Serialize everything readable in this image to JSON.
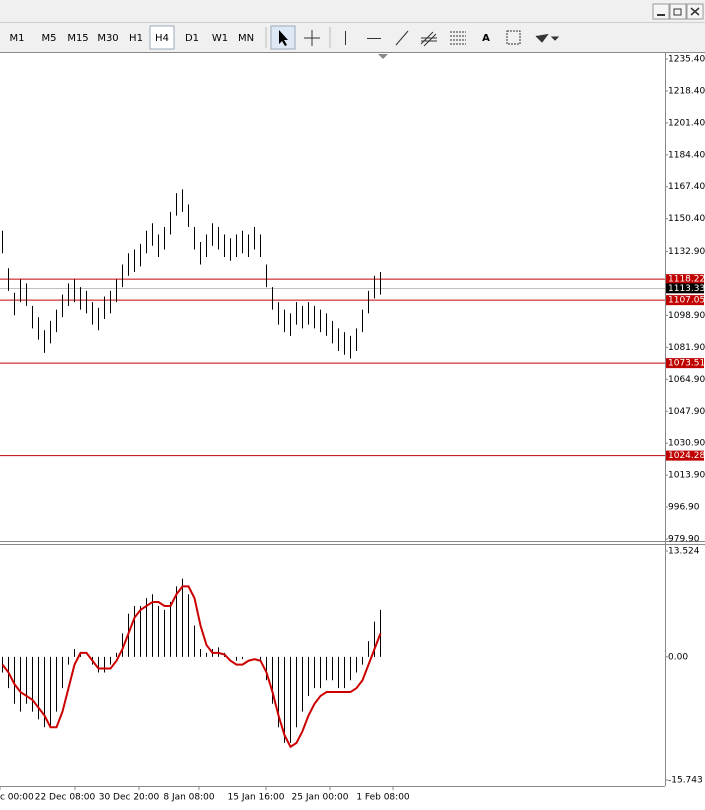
{
  "toolbar": {
    "timeframes": [
      "M1",
      "M5",
      "M15",
      "M30",
      "H1",
      "H4",
      "D1",
      "W1",
      "MN"
    ],
    "text_tool": "A"
  },
  "chart_data": [
    {
      "type": "ohlc",
      "highs": [
        1144,
        1124,
        1111,
        1118,
        1116,
        1104,
        1098,
        1091,
        1096,
        1102,
        1110,
        1116,
        1118,
        1114,
        1112,
        1106,
        1103,
        1109,
        1112,
        1118,
        1126,
        1132,
        1134,
        1137,
        1144,
        1148,
        1142,
        1146,
        1154,
        1164,
        1166,
        1158,
        1146,
        1138,
        1142,
        1148,
        1146,
        1142,
        1140,
        1142,
        1144,
        1142,
        1146,
        1142,
        1126,
        1114,
        1106,
        1102,
        1100,
        1106,
        1104,
        1106,
        1104,
        1102,
        1100,
        1096,
        1092,
        1090,
        1088,
        1092,
        1102,
        1112,
        1120,
        1122
      ],
      "lows": [
        1132,
        1112,
        1099,
        1106,
        1104,
        1092,
        1086,
        1079,
        1084,
        1090,
        1098,
        1104,
        1106,
        1102,
        1100,
        1094,
        1091,
        1097,
        1100,
        1106,
        1114,
        1120,
        1122,
        1125,
        1132,
        1136,
        1130,
        1134,
        1142,
        1152,
        1154,
        1146,
        1134,
        1126,
        1130,
        1136,
        1134,
        1130,
        1128,
        1130,
        1132,
        1130,
        1134,
        1130,
        1114,
        1102,
        1094,
        1090,
        1088,
        1094,
        1092,
        1094,
        1092,
        1090,
        1088,
        1084,
        1080,
        1078,
        1076,
        1080,
        1090,
        1100,
        1108,
        1110
      ],
      "ylim": [
        979.9,
        1235.4
      ],
      "yticks": [
        {
          "value": 1235.4,
          "label": "1235.40"
        },
        {
          "value": 1218.4,
          "label": "1218.40"
        },
        {
          "value": 1201.4,
          "label": "1201.40"
        },
        {
          "value": 1184.4,
          "label": "1184.40"
        },
        {
          "value": 1167.4,
          "label": "1167.40"
        },
        {
          "value": 1150.4,
          "label": "1150.40"
        },
        {
          "value": 1132.9,
          "label": "1132.90"
        },
        {
          "value": 1098.9,
          "label": "1098.90"
        },
        {
          "value": 1081.9,
          "label": "1081.90"
        },
        {
          "value": 1064.9,
          "label": "1064.90"
        },
        {
          "value": 1047.9,
          "label": "1047.90"
        },
        {
          "value": 1030.9,
          "label": "1030.90"
        },
        {
          "value": 1013.9,
          "label": "1013.90"
        },
        {
          "value": 996.9,
          "label": "996.90"
        },
        {
          "value": 979.9,
          "label": "979.90"
        }
      ],
      "levels": [
        1118.22,
        1107.05,
        1073.51,
        1024.28
      ],
      "level_color": "#c00000",
      "bid": 1113.33,
      "bar_color": "#000000"
    },
    {
      "type": "macd",
      "histogram": [
        -2,
        -4,
        -6,
        -7,
        -6,
        -7,
        -8,
        -9,
        -9,
        -7,
        -4,
        -1,
        1,
        0.5,
        0,
        -1,
        -2,
        -2,
        -1,
        0.5,
        3,
        5.5,
        6.5,
        6.5,
        7.5,
        8,
        6.5,
        6,
        7,
        9,
        10,
        8,
        4,
        1,
        0.5,
        1,
        1.2,
        0.5,
        0,
        -0.5,
        -0.3,
        0,
        0,
        -0.5,
        -3,
        -6,
        -9,
        -11,
        -11,
        -9,
        -7,
        -5,
        -4,
        -4,
        -3,
        -3,
        -4,
        -4,
        -3,
        -2,
        -1,
        2,
        4.5,
        6
      ],
      "signal": [
        -1,
        -2,
        -3.5,
        -4.5,
        -5,
        -5.5,
        -6.5,
        -7.5,
        -9,
        -9,
        -7,
        -4,
        -1,
        0.5,
        0.5,
        -0.5,
        -1.5,
        -1.5,
        -1.5,
        -0.5,
        1,
        3,
        5,
        6,
        6.5,
        7,
        7,
        6.5,
        6.5,
        8,
        9,
        9,
        7.5,
        4,
        1.5,
        0.5,
        0.5,
        0.3,
        -0.5,
        -1,
        -1,
        -0.5,
        -0.3,
        -0.5,
        -2,
        -4.5,
        -7.5,
        -10,
        -11.5,
        -11,
        -9.5,
        -7.5,
        -6,
        -5,
        -4.5,
        -4.5,
        -4.5,
        -4.5,
        -4.5,
        -4,
        -3,
        -1,
        1,
        3
      ],
      "histogram_color": "#000000",
      "signal_color": "#cc0000",
      "ylim": [
        -15.743,
        13.524
      ],
      "yticks": [
        13.524,
        {
          "value": 0,
          "label": "0.00"
        },
        -15.743
      ],
      "x_labels": [
        "c 00:00",
        "22 Dec 08:00",
        "30 Dec 20:00",
        "8 Jan 08:00",
        "15 Jan 16:00",
        "25 Jan 00:00",
        "1 Feb 08:00"
      ]
    }
  ]
}
